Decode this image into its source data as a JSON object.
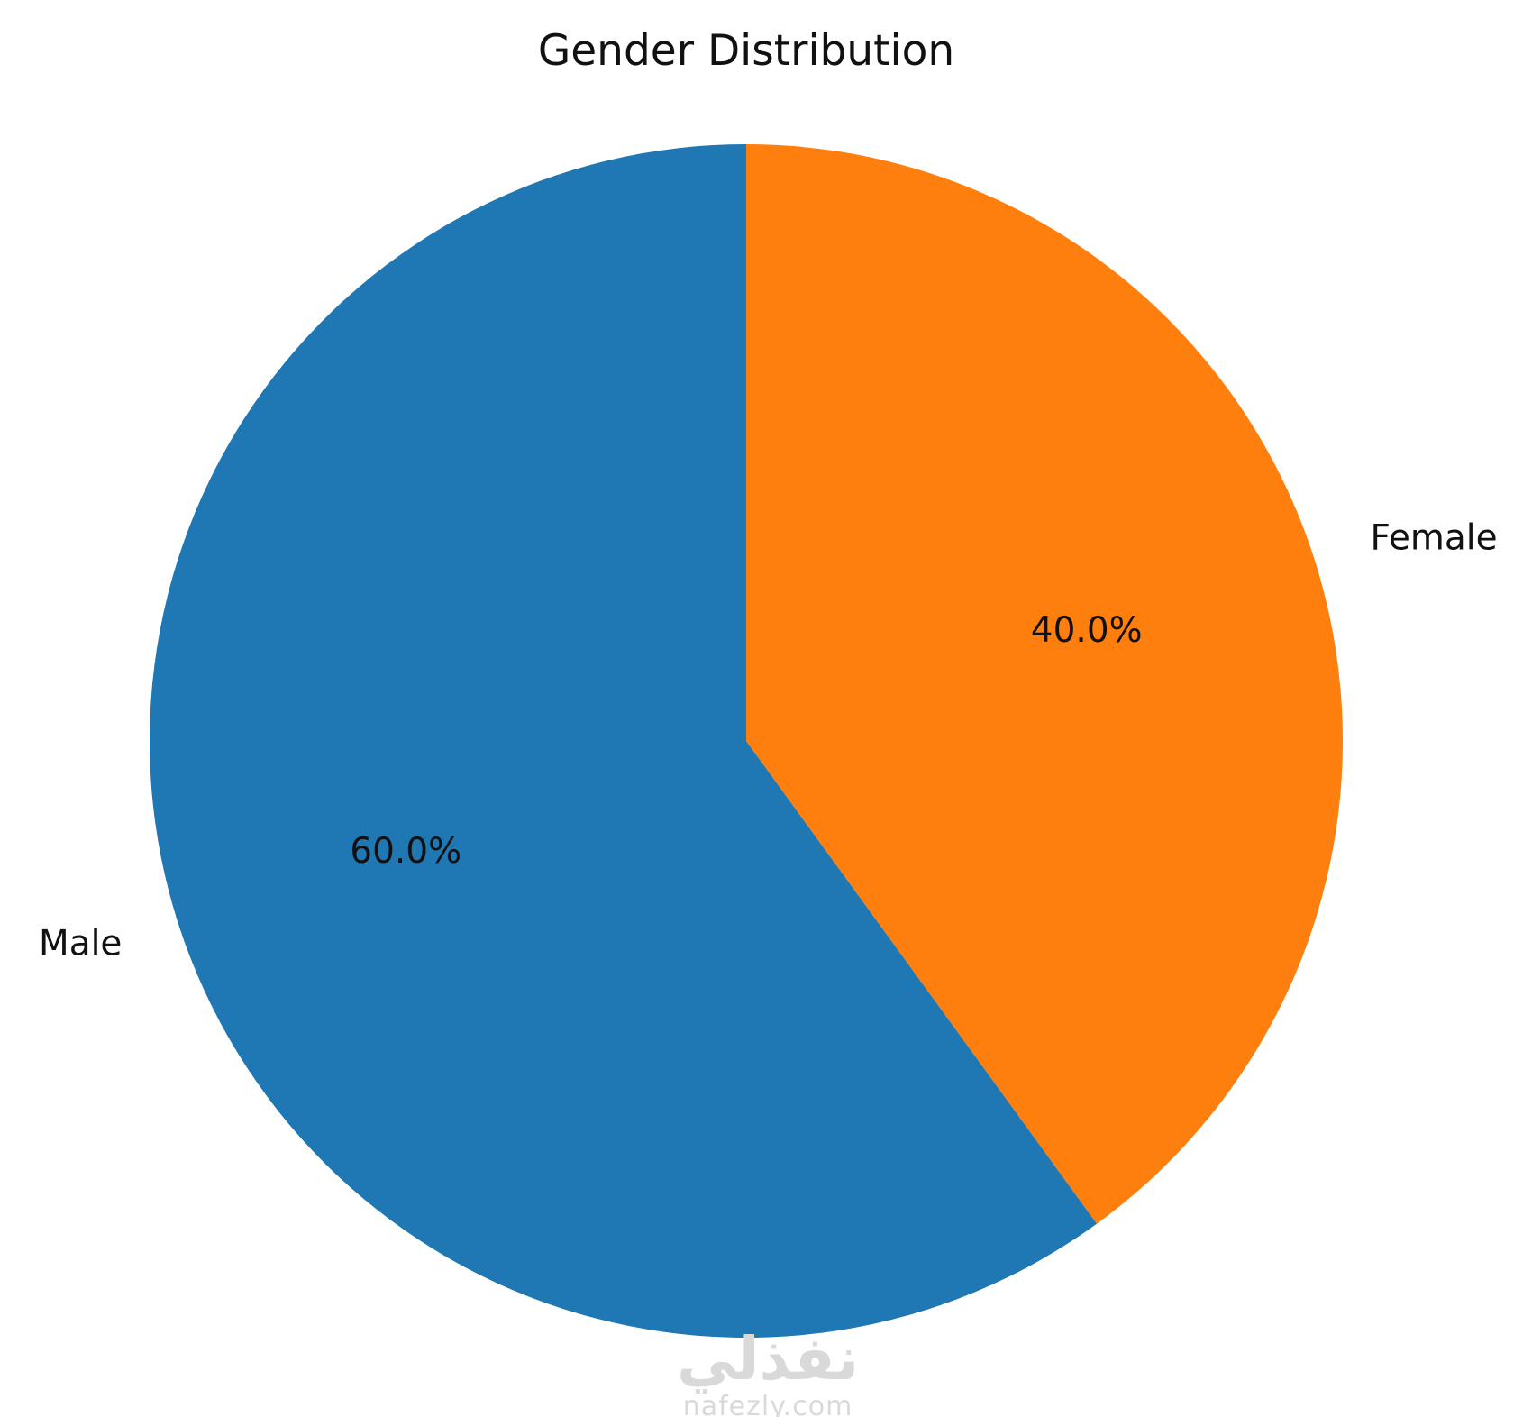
{
  "chart_data": {
    "type": "pie",
    "title": "Gender Distribution",
    "slices": [
      {
        "label": "Male",
        "value": 60.0,
        "pct_label": "60.0%",
        "color": "#1f77b4"
      },
      {
        "label": "Female",
        "value": 40.0,
        "pct_label": "40.0%",
        "color": "#ff7f0e"
      }
    ],
    "start_angle_deg": 90,
    "direction": "counterclockwise",
    "legend": "none"
  },
  "watermark": {
    "arabic": "نفذلي",
    "latin": "nafezly.com"
  }
}
